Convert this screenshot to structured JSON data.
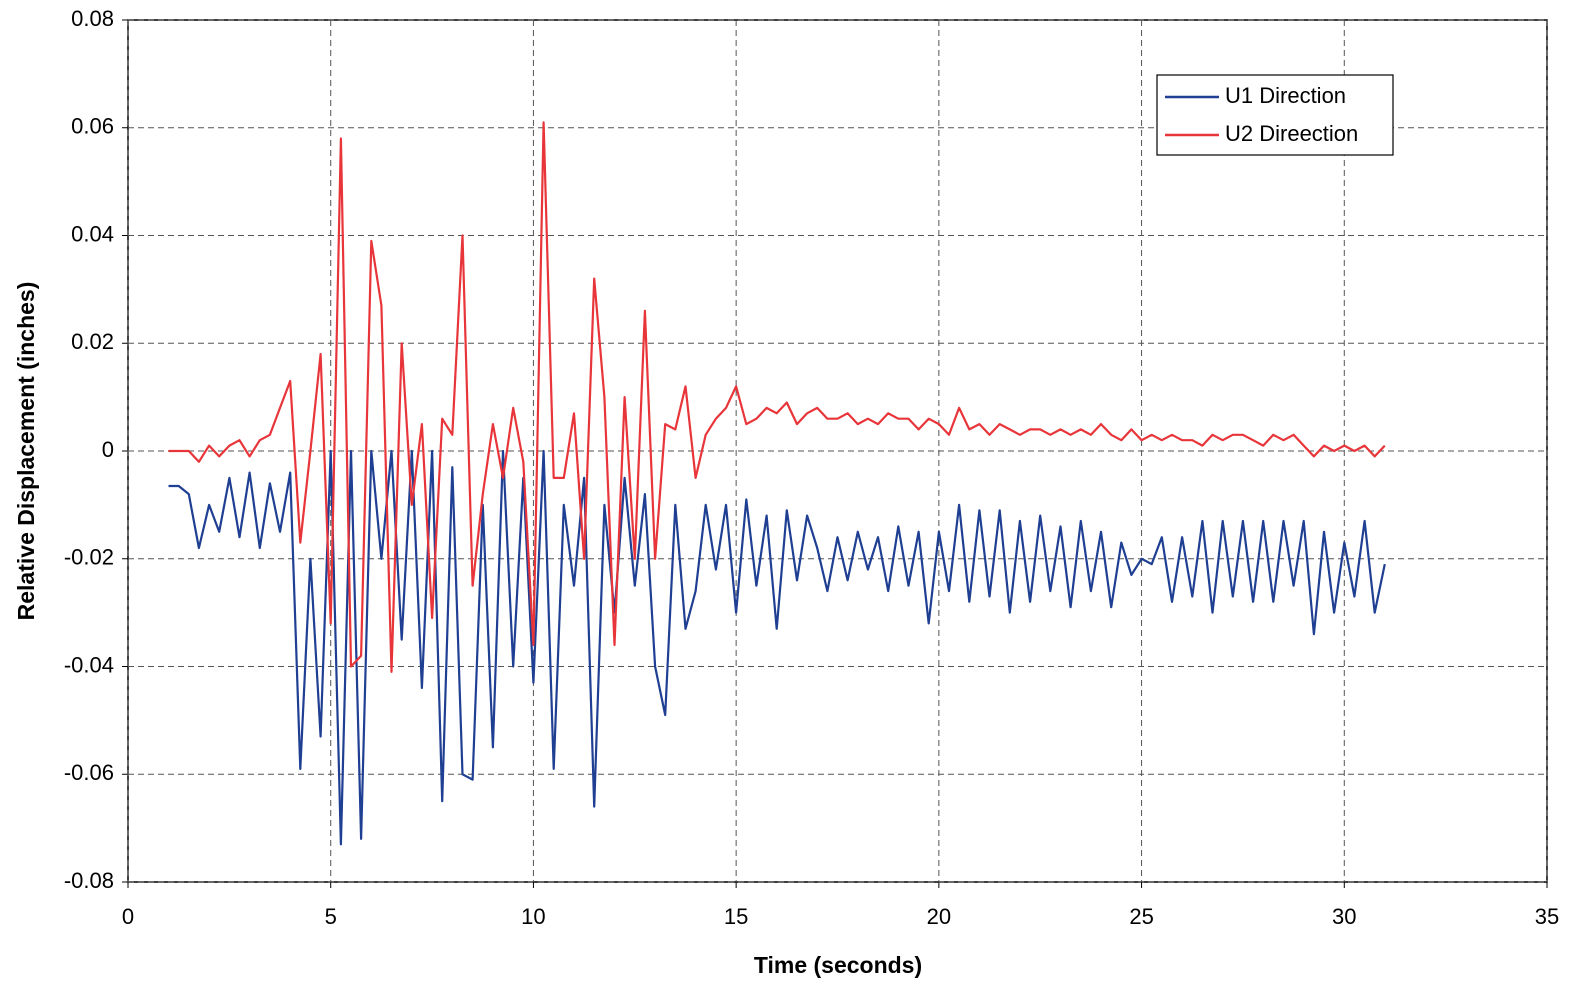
{
  "chart_data": {
    "type": "line",
    "x_label": "Time (seconds)",
    "y_label": "Relative Displacement (inches)",
    "xlim": [
      0,
      35
    ],
    "xticks": [
      0,
      5,
      10,
      15,
      20,
      25,
      30,
      35
    ],
    "ylim": [
      -0.08,
      0.08
    ],
    "yticks": [
      0.08,
      0.06,
      0.04,
      0.02,
      0,
      -0.02,
      -0.04,
      -0.06,
      -0.08
    ],
    "grid": true,
    "legend": "upper-right",
    "x": [
      1.0,
      1.25,
      1.5,
      1.75,
      2.0,
      2.25,
      2.5,
      2.75,
      3.0,
      3.25,
      3.5,
      3.75,
      4.0,
      4.25,
      4.5,
      4.75,
      5.0,
      5.25,
      5.5,
      5.75,
      6.0,
      6.25,
      6.5,
      6.75,
      7.0,
      7.25,
      7.5,
      7.75,
      8.0,
      8.25,
      8.5,
      8.75,
      9.0,
      9.25,
      9.5,
      9.75,
      10.0,
      10.25,
      10.5,
      10.75,
      11.0,
      11.25,
      11.5,
      11.75,
      12.0,
      12.25,
      12.5,
      12.75,
      13.0,
      13.25,
      13.5,
      13.75,
      14.0,
      14.25,
      14.5,
      14.75,
      15.0,
      15.25,
      15.5,
      15.75,
      16.0,
      16.25,
      16.5,
      16.75,
      17.0,
      17.25,
      17.5,
      17.75,
      18.0,
      18.25,
      18.5,
      18.75,
      19.0,
      19.25,
      19.5,
      19.75,
      20.0,
      20.25,
      20.5,
      20.75,
      21.0,
      21.25,
      21.5,
      21.75,
      22.0,
      22.25,
      22.5,
      22.75,
      23.0,
      23.25,
      23.5,
      23.75,
      24.0,
      24.25,
      24.5,
      24.75,
      25.0,
      25.25,
      25.5,
      25.75,
      26.0,
      26.25,
      26.5,
      26.75,
      27.0,
      27.25,
      27.5,
      27.75,
      28.0,
      28.25,
      28.5,
      28.75,
      29.0,
      29.25,
      29.5,
      29.75,
      30.0,
      30.25,
      30.5,
      30.75,
      31.0
    ],
    "series": [
      {
        "name": "U1 Direction",
        "color": "#1f3f93",
        "values": [
          -0.0065,
          -0.0065,
          -0.008,
          -0.018,
          -0.01,
          -0.015,
          -0.005,
          -0.016,
          -0.004,
          -0.018,
          -0.006,
          -0.015,
          -0.004,
          -0.059,
          -0.02,
          -0.053,
          0,
          -0.073,
          0,
          -0.072,
          0,
          -0.02,
          0,
          -0.035,
          0,
          -0.044,
          0,
          -0.065,
          -0.003,
          -0.06,
          -0.061,
          -0.01,
          -0.055,
          0,
          -0.04,
          -0.005,
          -0.043,
          0,
          -0.059,
          -0.01,
          -0.025,
          -0.005,
          -0.066,
          -0.01,
          -0.03,
          -0.005,
          -0.025,
          -0.008,
          -0.04,
          -0.049,
          -0.01,
          -0.033,
          -0.026,
          -0.01,
          -0.022,
          -0.01,
          -0.03,
          -0.009,
          -0.025,
          -0.012,
          -0.033,
          -0.011,
          -0.024,
          -0.012,
          -0.018,
          -0.026,
          -0.016,
          -0.024,
          -0.015,
          -0.022,
          -0.016,
          -0.026,
          -0.014,
          -0.025,
          -0.015,
          -0.032,
          -0.015,
          -0.026,
          -0.01,
          -0.028,
          -0.011,
          -0.027,
          -0.011,
          -0.03,
          -0.013,
          -0.028,
          -0.012,
          -0.026,
          -0.014,
          -0.029,
          -0.013,
          -0.026,
          -0.015,
          -0.029,
          -0.017,
          -0.023,
          -0.02,
          -0.021,
          -0.016,
          -0.028,
          -0.016,
          -0.027,
          -0.013,
          -0.03,
          -0.013,
          -0.027,
          -0.013,
          -0.028,
          -0.013,
          -0.028,
          -0.013,
          -0.025,
          -0.013,
          -0.034,
          -0.015,
          -0.03,
          -0.017,
          -0.027,
          -0.013,
          -0.03,
          -0.021
        ]
      },
      {
        "name": "U2 Direection",
        "color": "#e8353a",
        "values": [
          0,
          0,
          0,
          -0.002,
          0.001,
          -0.001,
          0.001,
          0.002,
          -0.001,
          0.002,
          0.003,
          0.008,
          0.013,
          -0.017,
          0,
          0.018,
          -0.032,
          0.058,
          -0.04,
          -0.038,
          0.039,
          0.027,
          -0.041,
          0.02,
          -0.01,
          0.005,
          -0.031,
          0.006,
          0.003,
          0.04,
          -0.025,
          -0.008,
          0.005,
          -0.005,
          0.008,
          -0.002,
          -0.036,
          0.061,
          -0.005,
          -0.005,
          0.007,
          -0.02,
          0.032,
          0.01,
          -0.036,
          0.01,
          -0.02,
          0.026,
          -0.02,
          0.005,
          0.004,
          0.012,
          -0.005,
          0.003,
          0.006,
          0.008,
          0.012,
          0.005,
          0.006,
          0.008,
          0.007,
          0.009,
          0.005,
          0.007,
          0.008,
          0.006,
          0.006,
          0.007,
          0.005,
          0.006,
          0.005,
          0.007,
          0.006,
          0.006,
          0.004,
          0.006,
          0.005,
          0.003,
          0.008,
          0.004,
          0.005,
          0.003,
          0.005,
          0.004,
          0.003,
          0.004,
          0.004,
          0.003,
          0.004,
          0.003,
          0.004,
          0.003,
          0.005,
          0.003,
          0.002,
          0.004,
          0.002,
          0.003,
          0.002,
          0.003,
          0.002,
          0.002,
          0.001,
          0.003,
          0.002,
          0.003,
          0.003,
          0.002,
          0.001,
          0.003,
          0.002,
          0.003,
          0.001,
          -0.001,
          0.001,
          0,
          0.001,
          0,
          0.001,
          -0.001,
          0.001
        ]
      }
    ]
  }
}
